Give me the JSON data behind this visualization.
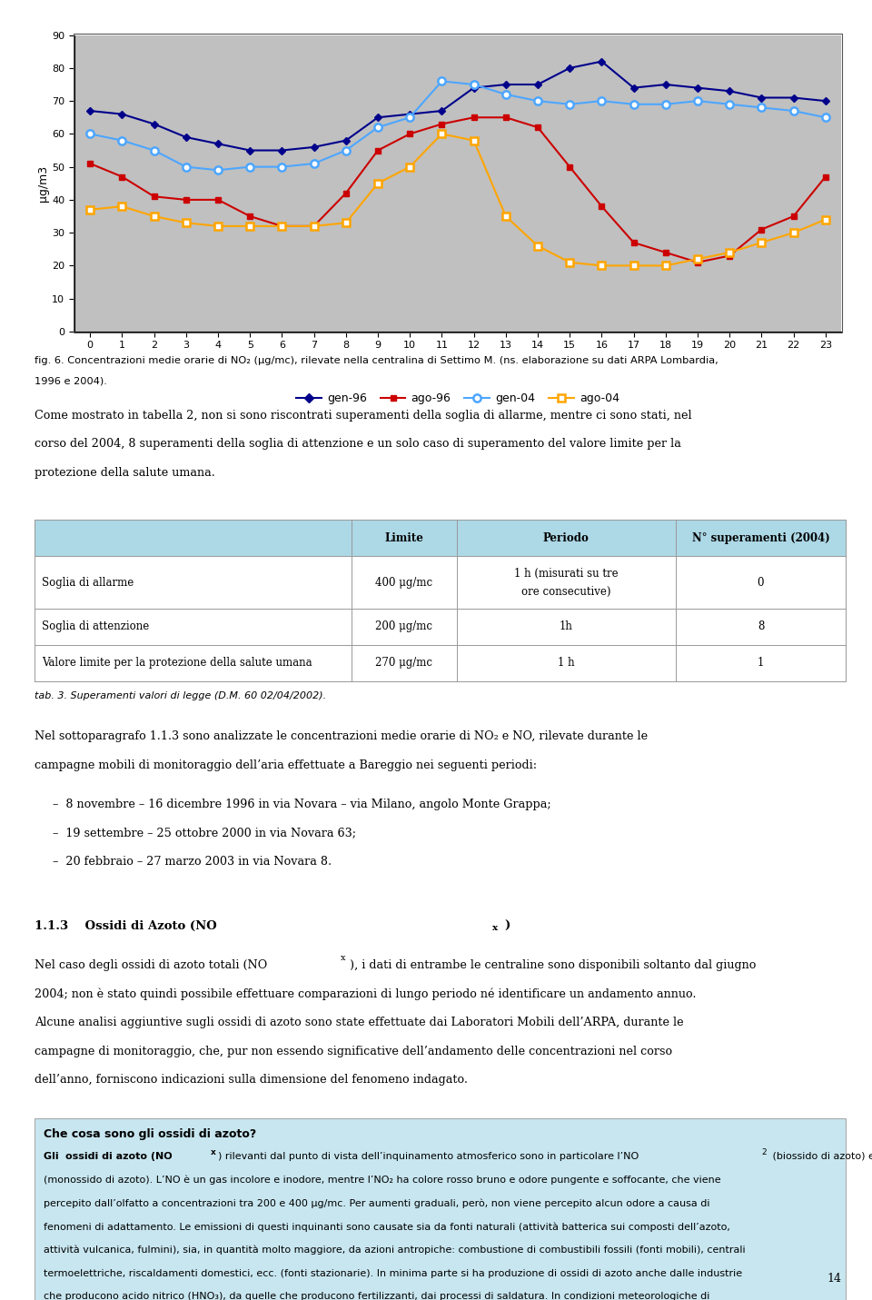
{
  "chart": {
    "background_color": "#c0c0c0",
    "x_ticks": [
      0,
      1,
      2,
      3,
      4,
      5,
      6,
      7,
      8,
      9,
      10,
      11,
      12,
      13,
      14,
      15,
      16,
      17,
      18,
      19,
      20,
      21,
      22,
      23
    ],
    "y_ticks": [
      0,
      10,
      20,
      30,
      40,
      50,
      60,
      70,
      80,
      90
    ],
    "ylabel": "μg/m3",
    "gen96": [
      67,
      66,
      63,
      59,
      57,
      55,
      55,
      56,
      58,
      65,
      66,
      67,
      74,
      75,
      75,
      80,
      82,
      74,
      75,
      74,
      73,
      71,
      71,
      70
    ],
    "ago96": [
      51,
      47,
      41,
      40,
      40,
      35,
      32,
      32,
      42,
      55,
      60,
      63,
      65,
      65,
      62,
      50,
      38,
      27,
      24,
      21,
      23,
      31,
      35,
      47
    ],
    "gen04": [
      60,
      58,
      55,
      50,
      49,
      50,
      50,
      51,
      55,
      62,
      65,
      76,
      75,
      72,
      70,
      69,
      70,
      69,
      69,
      70,
      69,
      68,
      67,
      65
    ],
    "ago04": [
      37,
      38,
      35,
      33,
      32,
      32,
      32,
      32,
      33,
      45,
      50,
      60,
      58,
      35,
      26,
      21,
      20,
      20,
      20,
      22,
      24,
      27,
      30,
      34
    ],
    "gen96_color": "#00008B",
    "ago96_color": "#CC0000",
    "gen04_color": "#4DA6FF",
    "ago04_color": "#FFA500"
  },
  "fig_caption_1": "fig. 6. Concentrazioni medie orarie di NO",
  "fig_caption_2": "2",
  "fig_caption_3": " (μg/mc), rilevate nella centralina di Settimo M. (ns. elaborazione su dati ARPA Lombardia,",
  "fig_caption_line2": "1996 e 2004).",
  "paragraph1": "Come mostrato in tabella 2, non si sono riscontrati superamenti della soglia di allarme, mentre ci sono stati, nel\ncorso del 2004, 8 superamenti della soglia di attenzione e un solo caso di superamento del valore limite per la\nprotezione della salute umana.",
  "table_header": [
    "",
    "Limite",
    "Periodo",
    "N° superamenti (2004)"
  ],
  "table_rows": [
    [
      "Soglia di allarme",
      "400 μg/mc",
      "1 h (misurati su tre\nore consecutive)",
      "0"
    ],
    [
      "Soglia di attenzione",
      "200 μg/mc",
      "1h",
      "8"
    ],
    [
      "Valore limite per la protezione della salute umana",
      "270 μg/mc",
      "1 h",
      "1"
    ]
  ],
  "table_header_bg": "#ADD8E6",
  "tab_caption": "tab. 3. Superamenti valori di legge (D.M. 60 02/04/2002).",
  "paragraph2_1": "Nel sottoparagrafo 1.1.3 sono analizzate le concentrazioni medie orarie di NO",
  "paragraph2_2": "2",
  "paragraph2_3": " e NO, rilevate durante le",
  "paragraph2_line2": "campagne mobili di monitoraggio dell’aria effettuate a Bareggio nei seguenti periodi:",
  "bullet_items": [
    "8 novembre – 16 dicembre 1996 in via Novara – via Milano, angolo Monte Grappa;",
    "19 settembre – 25 ottobre 2000 in via Novara 63;",
    "20 febbraio – 27 marzo 2003 in via Novara 8."
  ],
  "section_title": "1.1.3    Ossidi di Azoto (NO",
  "section_sub": "x",
  "section_end": ")",
  "paragraph3": "Nel caso degli ossidi di azoto totali (NO",
  "paragraph3_sub": "x",
  "paragraph3_rest": "), i dati di entrambe le centraline sono disponibili soltanto dal giugno\n2004; non è stato quindi possibile effettuare comparazioni di lungo periodo né identificare un andamento annuo.\nAlcune analisi aggiuntive sugli ossidi di azoto sono state effettuate dai Laboratori Mobili dell’ARPA, durante le\ncampagne di monitoraggio, che, pur non essendo significative dell’andamento delle concentrazioni nel corso\ndell’anno, forniscono indicazioni sulla dimensione del fenomeno indagato.",
  "info_box_title": "Che cosa sono gli ossidi di azoto?",
  "info_box_bg": "#C8E6F0",
  "info_box_text_line1": "Gli ossidi di azoto (NO",
  "info_box_text_line1_sub": "x",
  "info_box_text_line1_rest": ") rilevanti dal punto di vista dell’inquinamento atmosferico sono in particolare l’NO",
  "info_box_text_line1_sub2": "2",
  "info_box_text_line1_rest2": " (biossido di azoto) e l’NO",
  "info_box_body": "(monossido di azoto). L’NO è un gas incolore e inodore, mentre l’NO₂ ha colore rosso bruno e odore pungente e soffocante, che viene\npercepito dall’olfatto a concentrazioni tra 200 e 400 μg/mc. Per aumenti graduali, però, non viene percepito alcun odore a causa di\nfenomeni di adattamento. Le emissioni di questi inquinanti sono causate sia da fonti naturali (attività batterica sui composti dell’azoto,\nattività vulcanica, fulmini), sia, in quantità molto maggiore, da azioni antropiche: combustione di combustibili fossili (fonti mobili), centrali\ntermoelettriche, riscaldamenti domestici, ecc. (fonti stazionarie). In minima parte si ha produzione di ossidi di azoto anche dalle industrie\nche producono acido nitrico (HNO₃), da quelle che producono fertilizzanti, dai processi di saldatura. In condizioni meteorologiche di\nstabilità e di forte insolazione, gli ossidi di azoto partecipano alla formazione del cosiddetto smog fotochimico, mentre in condizioni di\npioggia, reagiscono con l’acqua originando acido nitrico, responsabile del fenomeno delle “piogge acide”.\nGli ossidi di azoto risultano irritanti per le mucose e contribuiscono all’insorgere di patologie al sistema respiratorio (bronchiti croniche,\nenfisemi polmonari, asma, ecc.); sono inoltre soggetti a deposizione secca sulla vegetazione.",
  "page_number": "14"
}
